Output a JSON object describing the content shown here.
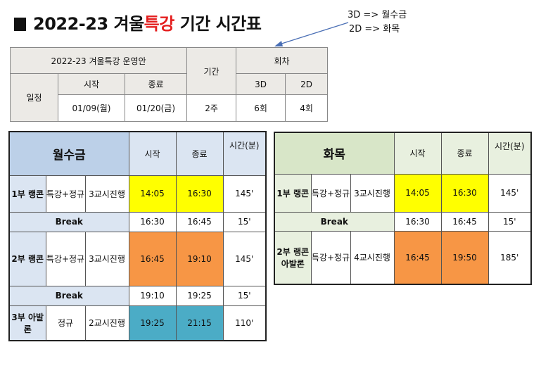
{
  "title": {
    "prefix": "2022-23 겨울",
    "highlight": "특강",
    "suffix": " 기간 시간표"
  },
  "note": {
    "line1": "3D => 월수금",
    "line2": "2D => 화목"
  },
  "summary": {
    "plan_label": "2022-23 겨울특강 운영안",
    "period_label": "기간",
    "sessions_label": "회차",
    "schedule_label": "일정",
    "start_label": "시작",
    "end_label": "종료",
    "col_3d": "3D",
    "col_2d": "2D",
    "start_date": "01/09(월)",
    "end_date": "01/20(금)",
    "period": "2주",
    "sessions_3d": "6회",
    "sessions_2d": "4회"
  },
  "mwf": {
    "title": "월수금",
    "start_label": "시작",
    "end_label": "종료",
    "duration_label": "시간(분)",
    "p1": {
      "label": "1부 랭콘",
      "type": "특강+정규",
      "detail": "3교시진행",
      "start": "14:05",
      "end": "16:30",
      "duration": "145'"
    },
    "break1": {
      "label": "Break",
      "start": "16:30",
      "end": "16:45",
      "duration": "15'"
    },
    "p2": {
      "label": "2부 랭콘",
      "type": "특강+정규",
      "detail": "3교시진행",
      "start": "16:45",
      "end": "19:10",
      "duration": "145'"
    },
    "break2": {
      "label": "Break",
      "start": "19:10",
      "end": "19:25",
      "duration": "15'"
    },
    "p3": {
      "label": "3부 아발론",
      "type": "정규",
      "detail": "2교시진행",
      "start": "19:25",
      "end": "21:15",
      "duration": "110'"
    }
  },
  "tt": {
    "title": "화목",
    "start_label": "시작",
    "end_label": "종료",
    "duration_label": "시간(분)",
    "p1": {
      "label": "1부 랭콘",
      "type": "특강+정규",
      "detail": "3교시진행",
      "start": "14:05",
      "end": "16:30",
      "duration": "145'"
    },
    "break1": {
      "label": "Break",
      "start": "16:30",
      "end": "16:45",
      "duration": "15'"
    },
    "p2": {
      "label": "2부 랭콘 아발론",
      "type": "특강+정규",
      "detail": "4교시진행",
      "start": "16:45",
      "end": "19:50",
      "duration": "185'"
    }
  },
  "colors": {
    "title_highlight": "#e41e1e",
    "mwf_header": "#bcd0e8",
    "tt_header": "#d8e6c8",
    "slot_yellow": "#ffff00",
    "slot_orange": "#f79645",
    "slot_teal": "#4bacc6"
  }
}
